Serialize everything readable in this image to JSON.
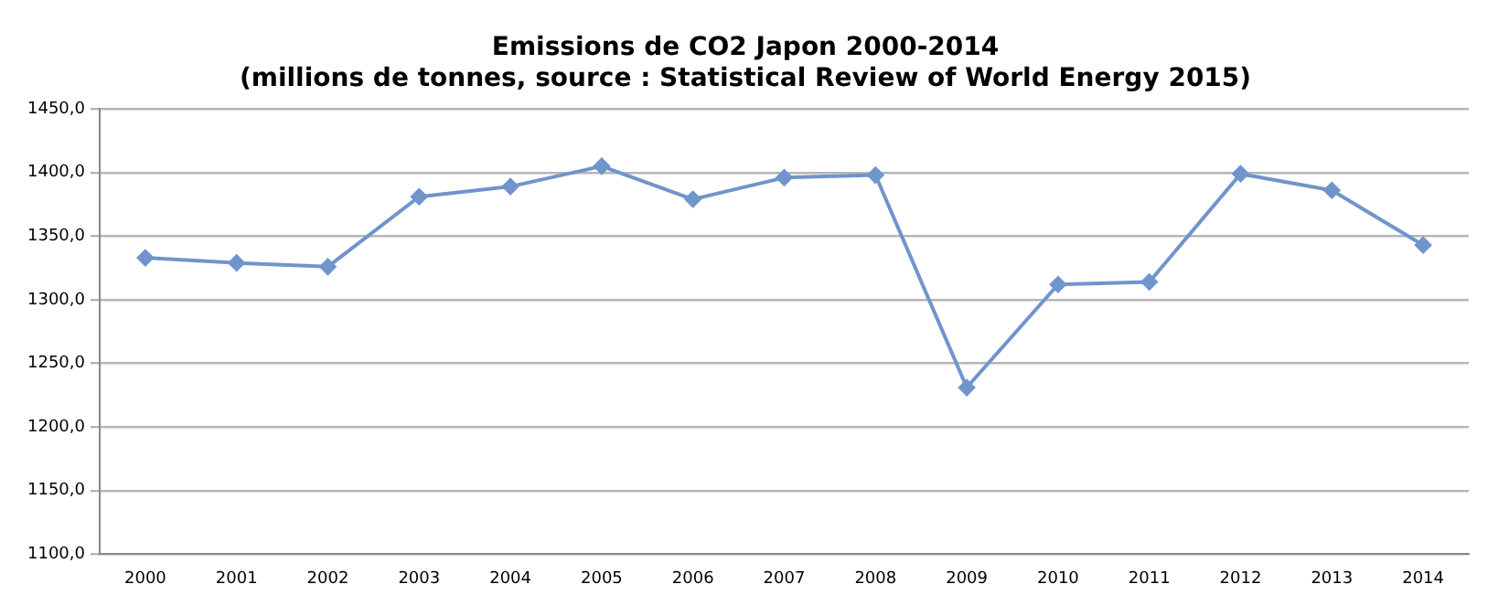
{
  "chart_data": {
    "type": "line",
    "title": [
      "Emissions de CO2 Japon 2000-2014",
      "(millions de tonnes, source : Statistical Review of World Energy 2015)"
    ],
    "categories": [
      "2000",
      "2001",
      "2002",
      "2003",
      "2004",
      "2005",
      "2006",
      "2007",
      "2008",
      "2009",
      "2010",
      "2011",
      "2012",
      "2013",
      "2014"
    ],
    "series": [
      {
        "color": "#7094cc",
        "values": [
          1333,
          1329,
          1326,
          1381,
          1389,
          1405,
          1379,
          1396,
          1398,
          1231,
          1312,
          1314,
          1399,
          1386,
          1343
        ]
      }
    ],
    "ylim": [
      1100,
      1450
    ],
    "yticks": [
      {
        "value": 1100,
        "label": "1100,0"
      },
      {
        "value": 1150,
        "label": "1150,0"
      },
      {
        "value": 1200,
        "label": "1200,0"
      },
      {
        "value": 1250,
        "label": "1250,0"
      },
      {
        "value": 1300,
        "label": "1300,0"
      },
      {
        "value": 1350,
        "label": "1350,0"
      },
      {
        "value": 1400,
        "label": "1400,0"
      },
      {
        "value": 1450,
        "label": "1450,0"
      }
    ],
    "grid": "y",
    "legend": false,
    "marker": "diamond",
    "line_style": "solid"
  }
}
